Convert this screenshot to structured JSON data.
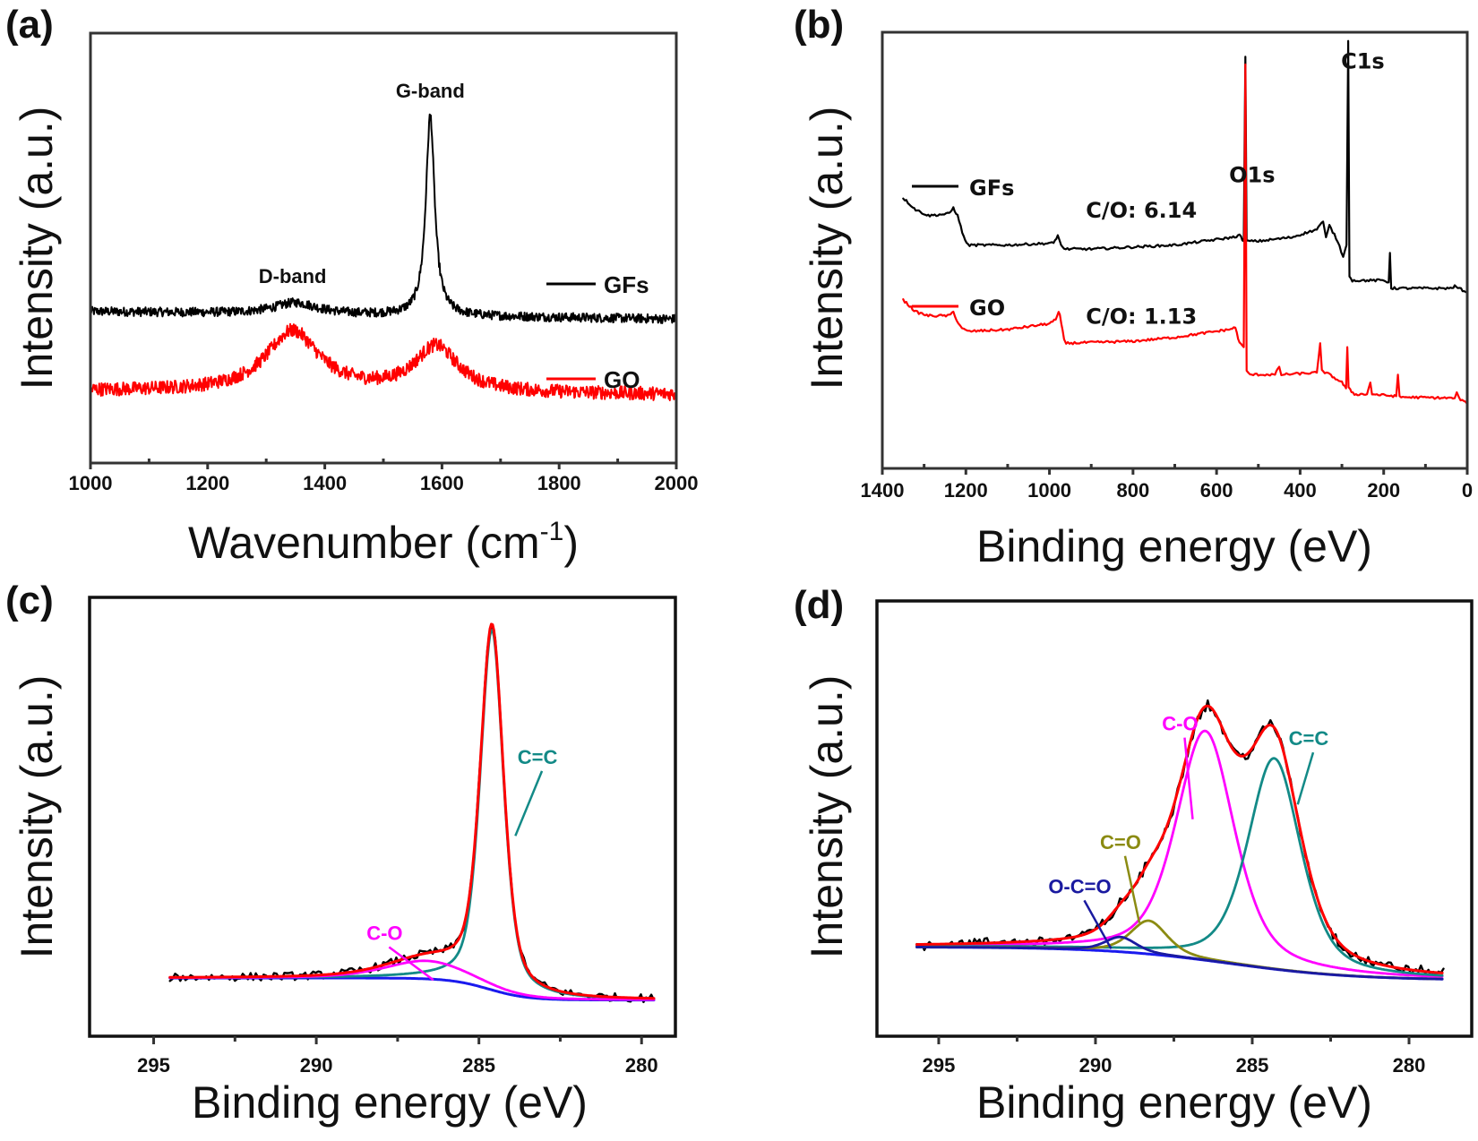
{
  "figure": {
    "panels": [
      "(a)",
      "(b)",
      "(c)",
      "(d)"
    ]
  },
  "chart_data": [
    {
      "id": "a",
      "panel_label": "(a)",
      "type": "line",
      "title": "",
      "xlabel": "Wavenumber (cm⁻¹)",
      "xlabel_main": "Wavenumber (cm",
      "xlabel_sup": "-1",
      "xlabel_close": ")",
      "ylabel": "Intensity (a.u.)",
      "xlim": [
        1000,
        2000
      ],
      "ylim": [
        0,
        1
      ],
      "x_reversed": false,
      "xticks": [
        1000,
        1200,
        1400,
        1600,
        1800,
        2000
      ],
      "xtick_labels": [
        "1000",
        "1200",
        "1400",
        "1600",
        "1800",
        "2000"
      ],
      "minor_xticks": [
        1100,
        1300,
        1500,
        1700,
        1900
      ],
      "grid": false,
      "legend_placement": "right",
      "series": [
        {
          "name": "GFs",
          "color": "#000000",
          "baseline": 0.355,
          "noise": 0.012,
          "slope": -0.02,
          "peaks": [
            {
              "center": 1350,
              "height": 0.03,
              "width": 45
            },
            {
              "center": 1580,
              "height": 0.53,
              "width": 9
            }
          ]
        },
        {
          "name": "GO",
          "color": "#ff0000",
          "baseline": 0.145,
          "noise": 0.018,
          "slope": -0.01,
          "peaks": [
            {
              "center": 1345,
              "height": 0.16,
              "width": 55
            },
            {
              "center": 1590,
              "height": 0.12,
              "width": 45
            }
          ]
        }
      ],
      "annotations": [
        {
          "text": "G-band",
          "x": 1580,
          "y": 0.92,
          "color": "#111111"
        },
        {
          "text": "D-band",
          "x": 1345,
          "y": 0.43,
          "color": "#111111"
        }
      ]
    },
    {
      "id": "b",
      "panel_label": "(b)",
      "type": "line",
      "title": "",
      "xlabel": "Binding energy (eV)",
      "ylabel": "Intensity (a.u.)",
      "xlim": [
        1400,
        0
      ],
      "ylim": [
        0,
        1
      ],
      "x_reversed": true,
      "xticks": [
        1400,
        1200,
        1000,
        800,
        600,
        400,
        200,
        0
      ],
      "xtick_labels": [
        "1400",
        "1200",
        "1000",
        "800",
        "600",
        "400",
        "200",
        "0"
      ],
      "minor_xticks": [
        1300,
        1100,
        900,
        700,
        500,
        300,
        100
      ],
      "grid": false,
      "legend_placement": "left",
      "series": [
        {
          "name": "GFs",
          "color": "#000000",
          "points": [
            [
              1350,
              0.6
            ],
            [
              1320,
              0.57
            ],
            [
              1290,
              0.555
            ],
            [
              1240,
              0.56
            ],
            [
              1230,
              0.575
            ],
            [
              1220,
              0.555
            ],
            [
              1205,
              0.5
            ],
            [
              1195,
              0.48
            ],
            [
              1100,
              0.48
            ],
            [
              990,
              0.485
            ],
            [
              980,
              0.505
            ],
            [
              972,
              0.48
            ],
            [
              965,
              0.47
            ],
            [
              900,
              0.47
            ],
            [
              700,
              0.48
            ],
            [
              560,
              0.5
            ],
            [
              545,
              0.505
            ],
            [
              535,
              0.49
            ],
            [
              531,
              0.96
            ],
            [
              528,
              0.49
            ],
            [
              500,
              0.49
            ],
            [
              420,
              0.5
            ],
            [
              360,
              0.52
            ],
            [
              345,
              0.54
            ],
            [
              338,
              0.5
            ],
            [
              330,
              0.53
            ],
            [
              310,
              0.49
            ],
            [
              297,
              0.45
            ],
            [
              289,
              0.48
            ],
            [
              285,
              1.0
            ],
            [
              282,
              0.4
            ],
            [
              275,
              0.39
            ],
            [
              200,
              0.39
            ],
            [
              188,
              0.385
            ],
            [
              185,
              0.46
            ],
            [
              182,
              0.37
            ],
            [
              40,
              0.37
            ],
            [
              30,
              0.375
            ],
            [
              0,
              0.36
            ]
          ]
        },
        {
          "name": "GO",
          "color": "#ff0000",
          "points": [
            [
              1350,
              0.34
            ],
            [
              1320,
              0.31
            ],
            [
              1290,
              0.3
            ],
            [
              1240,
              0.3
            ],
            [
              1230,
              0.31
            ],
            [
              1218,
              0.28
            ],
            [
              1205,
              0.265
            ],
            [
              1195,
              0.26
            ],
            [
              1100,
              0.265
            ],
            [
              1000,
              0.28
            ],
            [
              985,
              0.29
            ],
            [
              978,
              0.31
            ],
            [
              975,
              0.3
            ],
            [
              965,
              0.24
            ],
            [
              960,
              0.23
            ],
            [
              800,
              0.235
            ],
            [
              700,
              0.245
            ],
            [
              570,
              0.265
            ],
            [
              555,
              0.27
            ],
            [
              545,
              0.23
            ],
            [
              535,
              0.22
            ],
            [
              531,
              0.94
            ],
            [
              528,
              0.16
            ],
            [
              520,
              0.15
            ],
            [
              460,
              0.15
            ],
            [
              450,
              0.17
            ],
            [
              445,
              0.15
            ],
            [
              360,
              0.155
            ],
            [
              352,
              0.23
            ],
            [
              348,
              0.16
            ],
            [
              330,
              0.15
            ],
            [
              300,
              0.13
            ],
            [
              290,
              0.115
            ],
            [
              287,
              0.22
            ],
            [
              284,
              0.115
            ],
            [
              270,
              0.1
            ],
            [
              240,
              0.1
            ],
            [
              232,
              0.13
            ],
            [
              228,
              0.1
            ],
            [
              170,
              0.095
            ],
            [
              166,
              0.15
            ],
            [
              162,
              0.093
            ],
            [
              30,
              0.09
            ],
            [
              25,
              0.105
            ],
            [
              20,
              0.09
            ],
            [
              0,
              0.075
            ]
          ]
        }
      ],
      "annotations": [
        {
          "text": "C1s",
          "x": 250,
          "y": 0.93,
          "color": "#111111"
        },
        {
          "text": "O1s",
          "x": 515,
          "y": 0.64,
          "color": "#111111"
        },
        {
          "text": "C/O: 6.14",
          "x": 780,
          "y": 0.55,
          "color": "#111111"
        },
        {
          "text": "C/O: 1.13",
          "x": 780,
          "y": 0.28,
          "color": "#111111"
        }
      ]
    },
    {
      "id": "c",
      "panel_label": "(c)",
      "type": "line",
      "title": "",
      "xlabel": "Binding energy (eV)",
      "ylabel": "Intensity (a.u.)",
      "xlim": [
        296.97,
        278.96
      ],
      "ylim": [
        0,
        1
      ],
      "x_reversed": true,
      "xticks": [
        295,
        290,
        285,
        280
      ],
      "xtick_labels": [
        "295",
        "290",
        "285",
        "280"
      ],
      "minor_xticks": [
        292.5,
        287.5,
        282.5
      ],
      "grid": false,
      "data_range": [
        294.5,
        279.6
      ],
      "background": {
        "left": 0.085,
        "right": 0.03,
        "step_center": 284.7,
        "step_width": 0.6
      },
      "components": [
        {
          "name": "C=C",
          "color": "#138a87",
          "center": 284.6,
          "height": 0.9,
          "fwhm": 0.85
        },
        {
          "name": "C-O",
          "color": "#ff00ff",
          "center": 286.6,
          "height": 0.045,
          "fwhm": 3.0
        }
      ],
      "envelope_color": "#ff0000",
      "raw_color": "#000000",
      "background_color": "#1a1aee",
      "annotations": [
        {
          "text": "C=C",
          "color": "#138a87",
          "x": 283.2,
          "y": 0.62,
          "arrow_to": [
            283.88,
            0.44
          ]
        },
        {
          "text": "C-O",
          "color": "#ff00ff",
          "x": 287.9,
          "y": 0.18,
          "arrow_to": [
            286.4,
            0.08
          ]
        }
      ]
    },
    {
      "id": "d",
      "panel_label": "(d)",
      "type": "line",
      "title": "",
      "xlabel": "Binding energy (eV)",
      "ylabel": "Intensity (a.u.)",
      "xlim": [
        296.97,
        278.0
      ],
      "ylim": [
        0,
        1
      ],
      "x_reversed": true,
      "xticks": [
        295,
        290,
        285,
        280
      ],
      "xtick_labels": [
        "295",
        "290",
        "285",
        "280"
      ],
      "minor_xticks": [
        292.5,
        287.5,
        282.5
      ],
      "grid": false,
      "data_range": [
        295.7,
        278.9
      ],
      "background": {
        "left": 0.135,
        "right": 0.045,
        "step_center": 285.7,
        "step_width": 2.0
      },
      "components": [
        {
          "name": "C-O",
          "color": "#ff00ff",
          "center": 286.5,
          "height": 0.62,
          "fwhm": 2.2
        },
        {
          "name": "C=C",
          "color": "#138a87",
          "center": 284.3,
          "height": 0.57,
          "fwhm": 2.0
        },
        {
          "name": "C=O",
          "color": "#8b8b12",
          "center": 288.3,
          "height": 0.09,
          "fwhm": 1.4
        },
        {
          "name": "O-C=O",
          "color": "#1a1aa0",
          "center": 289.2,
          "height": 0.04,
          "fwhm": 1.2
        }
      ],
      "envelope_color": "#ff0000",
      "raw_color": "#000000",
      "background_color": "#1a1aee",
      "annotations": [
        {
          "text": "C-O",
          "color": "#ff00ff",
          "x": 287.3,
          "y": 0.72,
          "arrow_to": [
            286.9,
            0.48
          ]
        },
        {
          "text": "C=C",
          "color": "#138a87",
          "x": 283.2,
          "y": 0.68,
          "arrow_to": [
            283.55,
            0.52
          ]
        },
        {
          "text": "C=O",
          "color": "#8b8b12",
          "x": 289.2,
          "y": 0.4,
          "arrow_to": [
            288.6,
            0.2
          ]
        },
        {
          "text": "O-C=O",
          "color": "#1a1aa0",
          "x": 290.5,
          "y": 0.28,
          "arrow_to": [
            289.5,
            0.13
          ]
        }
      ]
    }
  ]
}
